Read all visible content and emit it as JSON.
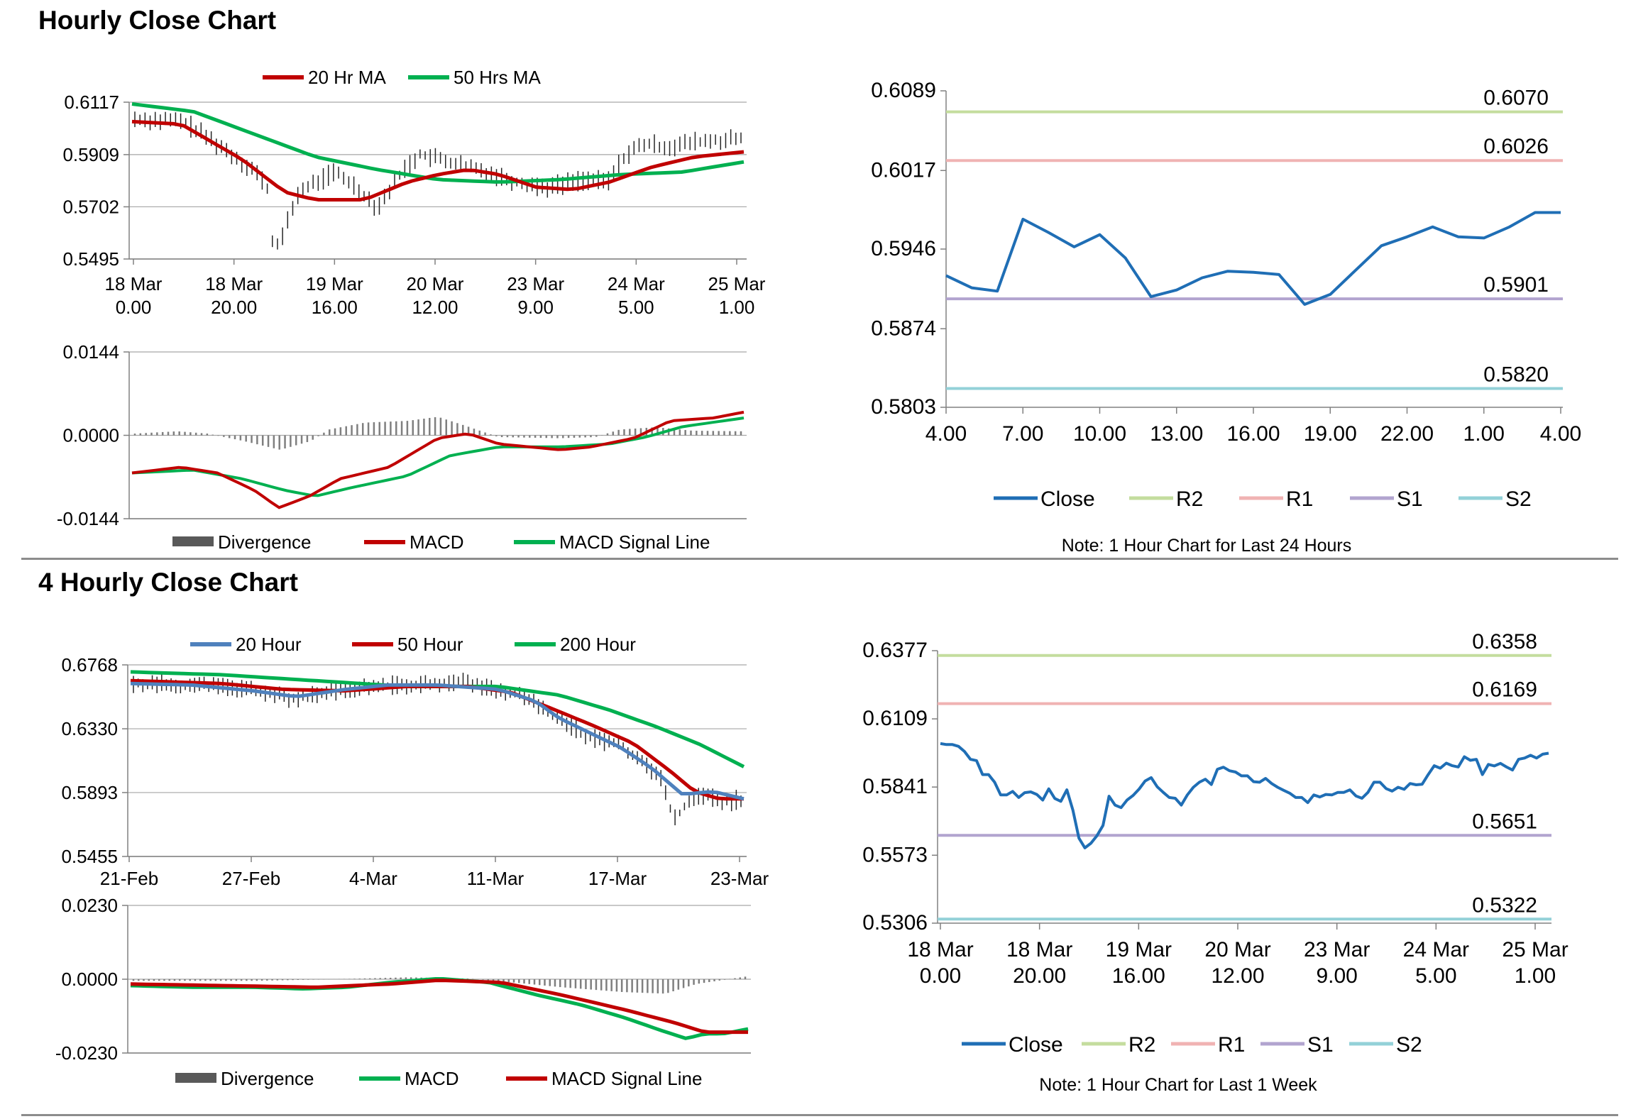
{
  "sections": [
    {
      "title": "Hourly Close Chart"
    },
    {
      "title": "4 Hourly Close Chart"
    }
  ],
  "charts": {
    "hourly_price": {
      "type": "line",
      "legend": [
        {
          "name": "20 Hr MA",
          "color": "#c00000"
        },
        {
          "name": "50 Hrs MA",
          "color": "#00b050"
        }
      ],
      "y_ticks": [
        "0.6117",
        "0.5909",
        "0.5702",
        "0.5495"
      ],
      "ylim": [
        0.5495,
        0.6117
      ],
      "x_ticks": [
        [
          "18 Mar",
          "0.00"
        ],
        [
          "18 Mar",
          "20.00"
        ],
        [
          "19 Mar",
          "16.00"
        ],
        [
          "20 Mar",
          "12.00"
        ],
        [
          "23 Mar",
          "9.00"
        ],
        [
          "24 Mar",
          "5.00"
        ],
        [
          "25 Mar",
          "1.00"
        ]
      ]
    },
    "hourly_macd": {
      "type": "line",
      "legend": [
        {
          "name": "Divergence",
          "color": "#595959"
        },
        {
          "name": "MACD",
          "color": "#c00000"
        },
        {
          "name": "MACD Signal Line",
          "color": "#00b050"
        }
      ],
      "y_ticks": [
        "0.0144",
        "0.0000",
        "-0.0144"
      ],
      "ylim": [
        -0.0144,
        0.0144
      ]
    },
    "hourly_sr": {
      "type": "line",
      "legend": [
        {
          "name": "Close",
          "color": "#1f6eb5"
        },
        {
          "name": "R2",
          "color": "#c4dd9e"
        },
        {
          "name": "R1",
          "color": "#f0b3b3"
        },
        {
          "name": "S1",
          "color": "#b2a4cf"
        },
        {
          "name": "S2",
          "color": "#93d1d8"
        }
      ],
      "y_ticks": [
        "0.6089",
        "0.6017",
        "0.5946",
        "0.5874",
        "0.5803"
      ],
      "ylim": [
        0.5803,
        0.6089
      ],
      "x_ticks": [
        "4.00",
        "7.00",
        "10.00",
        "13.00",
        "16.00",
        "19.00",
        "22.00",
        "1.00",
        "4.00"
      ],
      "levels": [
        {
          "name": "R2",
          "value": 0.607,
          "label": "0.6070",
          "color": "#c4dd9e"
        },
        {
          "name": "R1",
          "value": 0.6026,
          "label": "0.6026",
          "color": "#f0b3b3"
        },
        {
          "name": "S1",
          "value": 0.5901,
          "label": "0.5901",
          "color": "#b2a4cf"
        },
        {
          "name": "S2",
          "value": 0.582,
          "label": "0.5820",
          "color": "#93d1d8"
        }
      ],
      "close_values": [
        0.5922,
        0.5911,
        0.5908,
        0.5973,
        0.5961,
        0.5948,
        0.5959,
        0.5938,
        0.5903,
        0.5909,
        0.592,
        0.5926,
        0.5925,
        0.5923,
        0.5896,
        0.5905,
        0.5927,
        0.5949,
        0.5957,
        0.5966,
        0.5957,
        0.5956,
        0.5966,
        0.5979,
        0.5979
      ],
      "note": "Note: 1 Hour Chart for Last 24 Hours"
    },
    "four_hour_price": {
      "type": "line",
      "legend": [
        {
          "name": "20 Hour",
          "color": "#4f81bd"
        },
        {
          "name": "50 Hour",
          "color": "#c00000"
        },
        {
          "name": "200 Hour",
          "color": "#00b050"
        }
      ],
      "y_ticks": [
        "0.6768",
        "0.6330",
        "0.5893",
        "0.5455"
      ],
      "ylim": [
        0.5455,
        0.6768
      ],
      "x_ticks": [
        "21-Feb",
        "27-Feb",
        "4-Mar",
        "11-Mar",
        "17-Mar",
        "23-Mar"
      ]
    },
    "four_hour_macd": {
      "type": "line",
      "legend": [
        {
          "name": "Divergence",
          "color": "#595959"
        },
        {
          "name": "MACD",
          "color": "#00b050"
        },
        {
          "name": "MACD Signal Line",
          "color": "#c00000"
        }
      ],
      "y_ticks": [
        "0.0230",
        "0.0000",
        "-0.0230"
      ],
      "ylim": [
        -0.023,
        0.023
      ]
    },
    "week_sr": {
      "type": "line",
      "legend": [
        {
          "name": "Close",
          "color": "#1f6eb5"
        },
        {
          "name": "R2",
          "color": "#c4dd9e"
        },
        {
          "name": "R1",
          "color": "#f0b3b3"
        },
        {
          "name": "S1",
          "color": "#b2a4cf"
        },
        {
          "name": "S2",
          "color": "#93d1d8"
        }
      ],
      "y_ticks": [
        "0.6377",
        "0.6109",
        "0.5841",
        "0.5573",
        "0.5306"
      ],
      "ylim": [
        0.5306,
        0.6377
      ],
      "x_ticks": [
        [
          "18 Mar",
          "0.00"
        ],
        [
          "18 Mar",
          "20.00"
        ],
        [
          "19 Mar",
          "16.00"
        ],
        [
          "20 Mar",
          "12.00"
        ],
        [
          "23 Mar",
          "9.00"
        ],
        [
          "24 Mar",
          "5.00"
        ],
        [
          "25 Mar",
          "1.00"
        ]
      ],
      "levels": [
        {
          "name": "R2",
          "value": 0.6358,
          "label": "0.6358",
          "color": "#c4dd9e"
        },
        {
          "name": "R1",
          "value": 0.6169,
          "label": "0.6169",
          "color": "#f0b3b3"
        },
        {
          "name": "S1",
          "value": 0.5651,
          "label": "0.5651",
          "color": "#b2a4cf"
        },
        {
          "name": "S2",
          "value": 0.5322,
          "label": "0.5322",
          "color": "#93d1d8"
        }
      ],
      "close_values": [
        0.6012,
        0.6008,
        0.6008,
        0.6001,
        0.5981,
        0.595,
        0.5945,
        0.589,
        0.589,
        0.586,
        0.581,
        0.581,
        0.5824,
        0.58,
        0.5819,
        0.5822,
        0.5812,
        0.579,
        0.5834,
        0.5796,
        0.5785,
        0.583,
        0.575,
        0.564,
        0.5602,
        0.562,
        0.565,
        0.569,
        0.5805,
        0.577,
        0.576,
        0.579,
        0.5808,
        0.5833,
        0.5865,
        0.5878,
        0.5842,
        0.582,
        0.58,
        0.5797,
        0.577,
        0.581,
        0.584,
        0.586,
        0.5872,
        0.5851,
        0.5911,
        0.5919,
        0.5905,
        0.59,
        0.5885,
        0.5885,
        0.5862,
        0.586,
        0.5875,
        0.5855,
        0.584,
        0.5828,
        0.5817,
        0.58,
        0.58,
        0.578,
        0.581,
        0.5802,
        0.5812,
        0.581,
        0.582,
        0.582,
        0.583,
        0.5806,
        0.5797,
        0.582,
        0.586,
        0.586,
        0.5835,
        0.5825,
        0.584,
        0.5832,
        0.5855,
        0.585,
        0.5852,
        0.589,
        0.5925,
        0.5915,
        0.5935,
        0.5925,
        0.592,
        0.596,
        0.5946,
        0.595,
        0.589,
        0.593,
        0.5924,
        0.5934,
        0.592,
        0.5908,
        0.595,
        0.5955,
        0.5966,
        0.5955,
        0.597,
        0.5974
      ],
      "note": "Note: 1 Hour Chart for Last 1 Week"
    }
  }
}
